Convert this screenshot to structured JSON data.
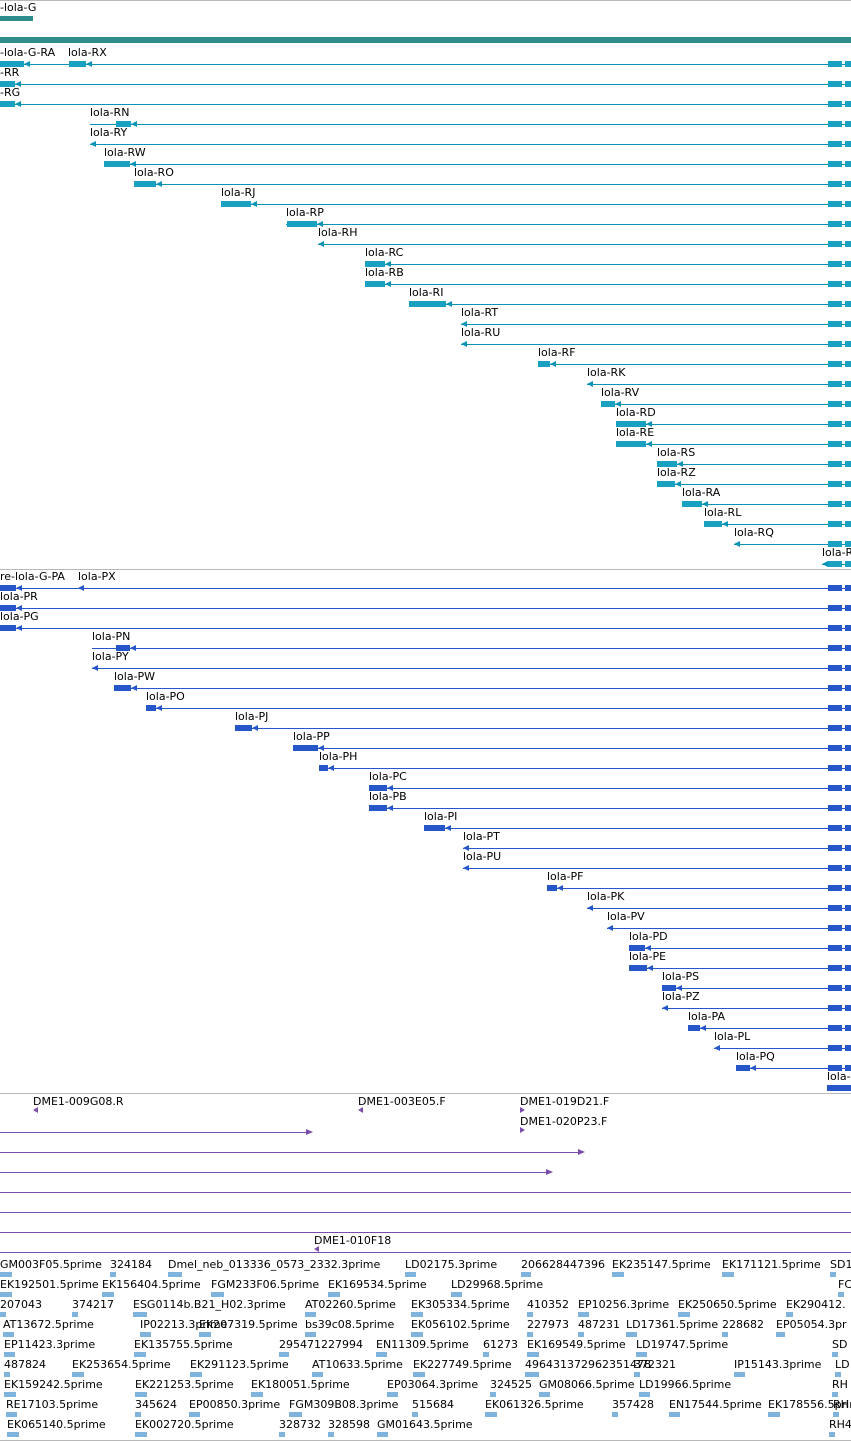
{
  "colors": {
    "gene_bar": "#2f8c8c",
    "transcript": "#0b93b5",
    "transcript_box": "#1aa0c0",
    "protein": "#2657c9",
    "clone": "#7a4ea8",
    "est": "#7fb3dc",
    "separator": "#b8b8b8"
  },
  "gene_track": {
    "label": "-lola-G",
    "icon": "gene-bar"
  },
  "transcript_track": {
    "items": [
      {
        "label": "-lola-G-RA",
        "dir": "left"
      },
      {
        "label": "lola-RX",
        "dir": "left"
      },
      {
        "label": "-RR",
        "dir": "left"
      },
      {
        "label": "-RG",
        "dir": "left"
      },
      {
        "label": "lola-RN",
        "dir": "left"
      },
      {
        "label": "lola-RY",
        "dir": "left"
      },
      {
        "label": "lola-RW",
        "dir": "left"
      },
      {
        "label": "lola-RO",
        "dir": "left"
      },
      {
        "label": "lola-RJ",
        "dir": "left"
      },
      {
        "label": "lola-RP",
        "dir": "left"
      },
      {
        "label": "lola-RH",
        "dir": "left"
      },
      {
        "label": "lola-RC",
        "dir": "left"
      },
      {
        "label": "lola-RB",
        "dir": "left"
      },
      {
        "label": "lola-RI",
        "dir": "left"
      },
      {
        "label": "lola-RT",
        "dir": "left"
      },
      {
        "label": "lola-RU",
        "dir": "left"
      },
      {
        "label": "lola-RF",
        "dir": "left"
      },
      {
        "label": "lola-RK",
        "dir": "left"
      },
      {
        "label": "lola-RV",
        "dir": "left"
      },
      {
        "label": "lola-RD",
        "dir": "left"
      },
      {
        "label": "lola-RE",
        "dir": "left"
      },
      {
        "label": "lola-RS",
        "dir": "left"
      },
      {
        "label": "lola-RZ",
        "dir": "left"
      },
      {
        "label": "lola-RA",
        "dir": "left"
      },
      {
        "label": "lola-RL",
        "dir": "left"
      },
      {
        "label": "lola-RQ",
        "dir": "left"
      },
      {
        "label": "lola-R",
        "dir": "left"
      }
    ]
  },
  "protein_track": {
    "items": [
      {
        "label": "re-lola-G-PA",
        "dir": "left"
      },
      {
        "label": "lola-PX",
        "dir": "left"
      },
      {
        "label": "lola-PR",
        "dir": "left"
      },
      {
        "label": "lola-PG",
        "dir": "left"
      },
      {
        "label": "lola-PN",
        "dir": "left"
      },
      {
        "label": "lola-PY",
        "dir": "left"
      },
      {
        "label": "lola-PW",
        "dir": "left"
      },
      {
        "label": "lola-PO",
        "dir": "left"
      },
      {
        "label": "lola-PJ",
        "dir": "left"
      },
      {
        "label": "lola-PP",
        "dir": "left"
      },
      {
        "label": "lola-PH",
        "dir": "left"
      },
      {
        "label": "lola-PC",
        "dir": "left"
      },
      {
        "label": "lola-PB",
        "dir": "left"
      },
      {
        "label": "lola-PI",
        "dir": "left"
      },
      {
        "label": "lola-PT",
        "dir": "left"
      },
      {
        "label": "lola-PU",
        "dir": "left"
      },
      {
        "label": "lola-PF",
        "dir": "left"
      },
      {
        "label": "lola-PK",
        "dir": "left"
      },
      {
        "label": "lola-PV",
        "dir": "left"
      },
      {
        "label": "lola-PD",
        "dir": "left"
      },
      {
        "label": "lola-PE",
        "dir": "left"
      },
      {
        "label": "lola-PS",
        "dir": "left"
      },
      {
        "label": "lola-PZ",
        "dir": "left"
      },
      {
        "label": "lola-PA",
        "dir": "left"
      },
      {
        "label": "lola-PL",
        "dir": "left"
      },
      {
        "label": "lola-PQ",
        "dir": "left"
      },
      {
        "label": "lola-",
        "dir": "left"
      }
    ]
  },
  "clone_track": {
    "labels": [
      "DME1-009G08.R",
      "DME1-003E05.F",
      "DME1-019D21.F",
      "DME1-020P23.F",
      "DME1-010F18"
    ]
  },
  "est_track": {
    "rows": [
      [
        "GM003F05.5prime",
        "324184",
        "Dmel_neb_013336_0573_2332.3prime",
        "LD02175.3prime",
        "206628447396",
        "EK235147.5prime",
        "EK171121.5prime",
        "SD1"
      ],
      [
        "EK192501.5prime",
        "EK156404.5prime",
        "FGM233F06.5prime",
        "EK169534.5prime",
        "LD29968.5prime",
        "FC"
      ],
      [
        "207043",
        "374217",
        "ESG0114b.B21_H02.3prime",
        "AT02260.5prime",
        "EK305334.5prime",
        "410352",
        "EP10256.3prime",
        "EK250650.5prime",
        "EK290412."
      ],
      [
        "AT13672.5prime",
        "IP02213.3prime",
        "EK207319.5prime",
        "bs39c08.5prime",
        "EK056102.5prime",
        "227973",
        "487231",
        "LD17361.5prime",
        "228682",
        "EP05054.3pr"
      ],
      [
        "EP11423.3prime",
        "EK135755.5prime",
        "295471227994",
        "EN11309.5prime",
        "61273",
        "EK169549.5prime",
        "LD19747.5prime",
        "SD"
      ],
      [
        "487824",
        "EK253654.5prime",
        "EK291123.5prime",
        "AT10633.5prime",
        "EK227749.5prime",
        "496431372962351478",
        "372321",
        "IP15143.3prime",
        "LD"
      ],
      [
        "EK159242.5prime",
        "EK221253.5prime",
        "EK180051.5prime",
        "EP03064.3prime",
        "324525",
        "GM08066.5prime",
        "LD19966.5prime",
        "RH"
      ],
      [
        "RE17103.5prime",
        "345624",
        "EP00850.3prime",
        "FGM309B08.3prime",
        "515684",
        "EK061326.5prime",
        "357428",
        "EN17544.5prime",
        "EK178556.5prime",
        "RH"
      ],
      [
        "EK065140.5prime",
        "EK002720.5prime",
        "328732",
        "328598",
        "GM01643.5prime",
        "RH4"
      ]
    ]
  }
}
